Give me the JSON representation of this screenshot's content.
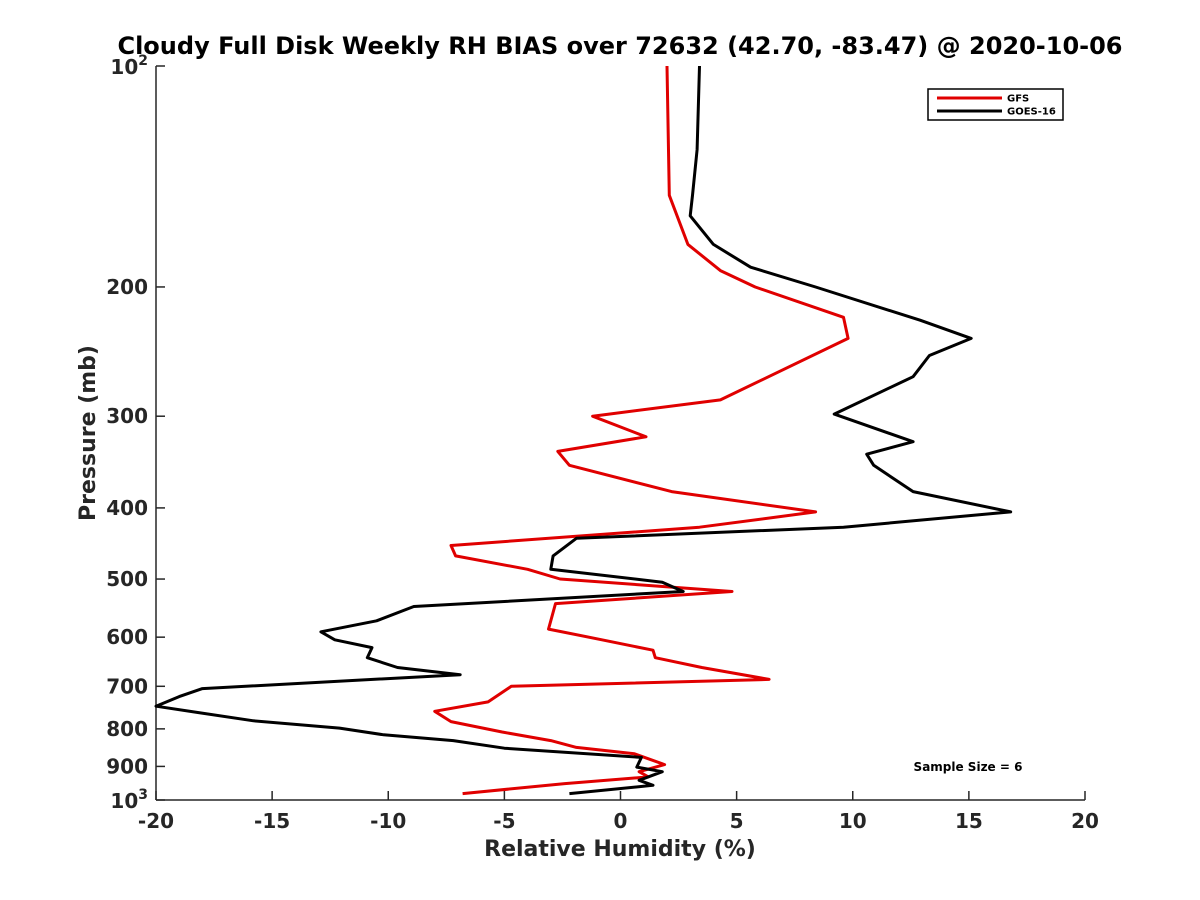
{
  "chart_data": {
    "type": "line",
    "title": "Cloudy Full Disk Weekly RH BIAS over 72632 (42.70, -83.47) @ 2020-10-06",
    "xlabel": "Relative Humidity (%)",
    "ylabel": "Pressure (mb)",
    "xlim": [
      -20,
      20
    ],
    "ylim": [
      100,
      1000
    ],
    "y_scale": "log",
    "y_reversed": true,
    "grid": false,
    "legend_position": "top-right",
    "x_ticks": [
      "-20",
      "-15",
      "-10",
      "-5",
      "0",
      "5",
      "10",
      "15",
      "20"
    ],
    "y_ticks": [
      {
        "value": 100,
        "base": "10",
        "exp": "2"
      },
      {
        "value": 200,
        "label": "200"
      },
      {
        "value": 300,
        "label": "300"
      },
      {
        "value": 400,
        "label": "400"
      },
      {
        "value": 500,
        "label": "500"
      },
      {
        "value": 600,
        "label": "600"
      },
      {
        "value": 700,
        "label": "700"
      },
      {
        "value": 800,
        "label": "800"
      },
      {
        "value": 900,
        "label": "900"
      },
      {
        "value": 1000,
        "base": "10",
        "exp": "3"
      }
    ],
    "annotation": "Sample Size = 6",
    "series": [
      {
        "name": "GFS",
        "color": "#e00000",
        "points": [
          [
            2.0,
            100
          ],
          [
            2.1,
            150
          ],
          [
            2.9,
            175
          ],
          [
            4.3,
            190
          ],
          [
            5.8,
            200
          ],
          [
            9.6,
            220
          ],
          [
            9.8,
            235
          ],
          [
            4.3,
            285
          ],
          [
            -1.2,
            300
          ],
          [
            1.1,
            320
          ],
          [
            -2.7,
            335
          ],
          [
            -2.2,
            350
          ],
          [
            2.2,
            380
          ],
          [
            8.4,
            405
          ],
          [
            3.4,
            425
          ],
          [
            -7.3,
            450
          ],
          [
            -7.1,
            465
          ],
          [
            -4.0,
            485
          ],
          [
            -2.6,
            500
          ],
          [
            4.8,
            520
          ],
          [
            -2.8,
            540
          ],
          [
            -3.1,
            585
          ],
          [
            -0.8,
            605
          ],
          [
            1.4,
            625
          ],
          [
            1.5,
            640
          ],
          [
            3.5,
            660
          ],
          [
            6.4,
            685
          ],
          [
            -4.7,
            700
          ],
          [
            -5.7,
            735
          ],
          [
            -8.0,
            757
          ],
          [
            -7.3,
            782
          ],
          [
            -5.1,
            808
          ],
          [
            -3.0,
            830
          ],
          [
            -1.9,
            848
          ],
          [
            0.6,
            865
          ],
          [
            1.9,
            895
          ],
          [
            0.8,
            915
          ],
          [
            1.2,
            930
          ],
          [
            -2.4,
            950
          ],
          [
            -6.8,
            980
          ]
        ]
      },
      {
        "name": "GOES-16",
        "color": "#000000",
        "points": [
          [
            3.4,
            100
          ],
          [
            3.3,
            130
          ],
          [
            3.1,
            150
          ],
          [
            3.0,
            160
          ],
          [
            4.0,
            175
          ],
          [
            5.6,
            188
          ],
          [
            8.4,
            200
          ],
          [
            12.9,
            222
          ],
          [
            15.1,
            235
          ],
          [
            13.3,
            248
          ],
          [
            12.6,
            265
          ],
          [
            9.2,
            298
          ],
          [
            12.6,
            325
          ],
          [
            10.6,
            338
          ],
          [
            10.9,
            350
          ],
          [
            12.6,
            380
          ],
          [
            16.8,
            405
          ],
          [
            9.6,
            425
          ],
          [
            -1.9,
            440
          ],
          [
            -2.9,
            465
          ],
          [
            -3.0,
            485
          ],
          [
            1.8,
            505
          ],
          [
            2.7,
            520
          ],
          [
            -8.9,
            545
          ],
          [
            -10.5,
            570
          ],
          [
            -12.9,
            590
          ],
          [
            -12.3,
            605
          ],
          [
            -10.7,
            620
          ],
          [
            -10.9,
            640
          ],
          [
            -9.6,
            660
          ],
          [
            -6.9,
            675
          ],
          [
            -18.0,
            705
          ],
          [
            -19.0,
            723
          ],
          [
            -20.0,
            745
          ],
          [
            -18.2,
            760
          ],
          [
            -15.8,
            780
          ],
          [
            -12.1,
            798
          ],
          [
            -10.2,
            815
          ],
          [
            -7.2,
            830
          ],
          [
            -5.0,
            850
          ],
          [
            0.9,
            875
          ],
          [
            0.7,
            902
          ],
          [
            1.8,
            915
          ],
          [
            0.8,
            940
          ],
          [
            1.4,
            955
          ],
          [
            -2.2,
            980
          ]
        ]
      }
    ]
  }
}
